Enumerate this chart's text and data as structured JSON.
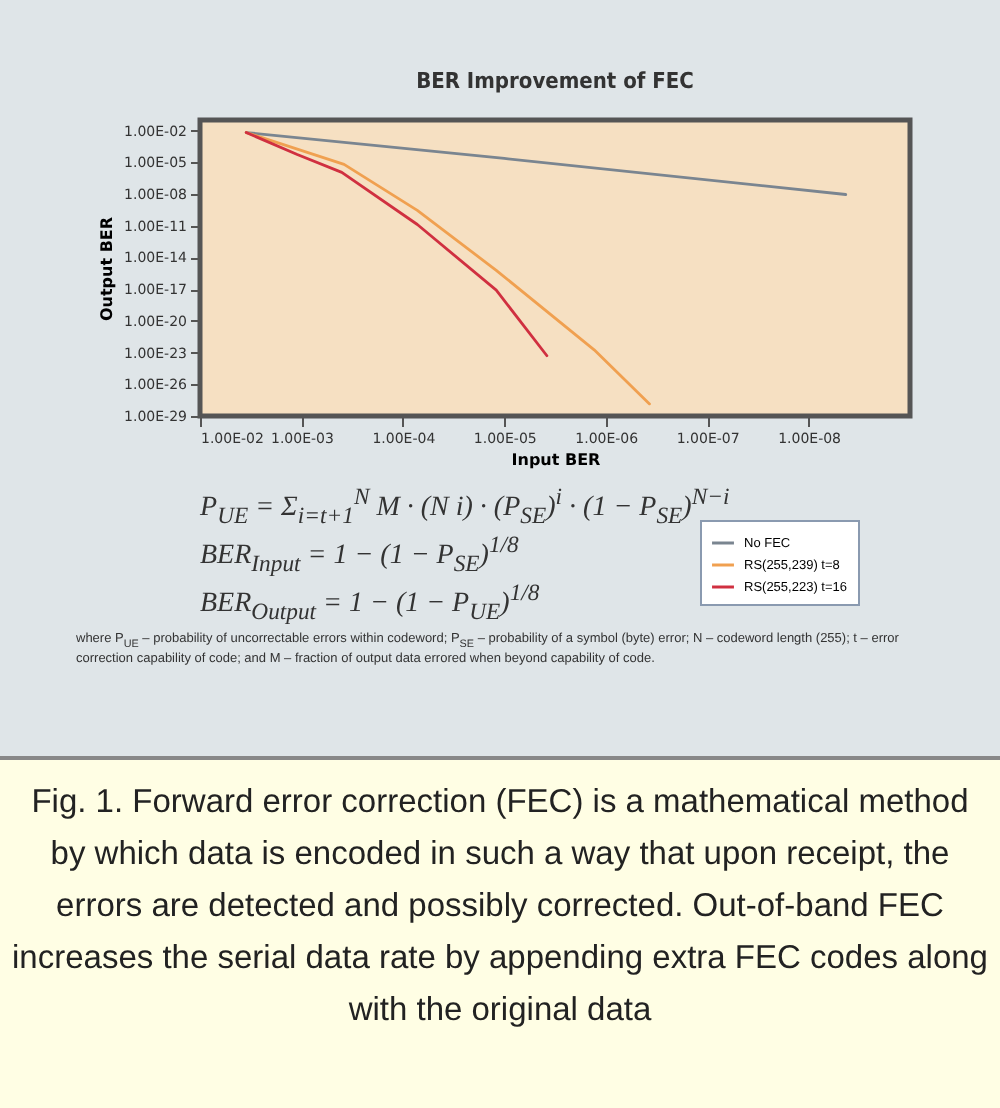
{
  "chart_data": {
    "type": "line",
    "title": "BER Improvement of FEC",
    "xlabel": "Input BER",
    "ylabel": "Output BER",
    "log": "xy",
    "grid": false,
    "legend": "bottom right",
    "marker": "none",
    "line_style": "solid",
    "xlim": [
      0.01,
      1e-09
    ],
    "ylim": [
      1e-29,
      0.1
    ],
    "xticks": [
      {
        "value": 0.01,
        "label": "1.00E-02"
      },
      {
        "value": 0.001,
        "label": "1.00E-03"
      },
      {
        "value": 0.0001,
        "label": "1.00E-04"
      },
      {
        "value": 1e-05,
        "label": "1.00E-05"
      },
      {
        "value": 1e-06,
        "label": "1.00E-06"
      },
      {
        "value": 1e-07,
        "label": "1.00E-07"
      },
      {
        "value": 1e-08,
        "label": "1.00E-08"
      }
    ],
    "yticks": [
      {
        "value": 0.01,
        "label": "1.00E-02"
      },
      {
        "value": 1e-05,
        "label": "1.00E-05"
      },
      {
        "value": 1e-08,
        "label": "1.00E-08"
      },
      {
        "value": 1e-11,
        "label": "1.00E-11"
      },
      {
        "value": 1e-14,
        "label": "1.00E-14"
      },
      {
        "value": 1e-17,
        "label": "1.00E-17"
      },
      {
        "value": 1e-20,
        "label": "1.00E-20"
      },
      {
        "value": 1e-23,
        "label": "1.00E-23"
      },
      {
        "value": 1e-26,
        "label": "1.00E-26"
      },
      {
        "value": 1e-29,
        "label": "1.00E-29"
      }
    ],
    "series": [
      {
        "name": "No FEC",
        "color": "#7a8590",
        "x": [
          0.0035,
          1e-05,
          4.3e-09
        ],
        "values": [
          0.0065,
          2.3e-05,
          9e-09
        ]
      },
      {
        "name": "RS(255,239) t=8",
        "color": "#f0a050",
        "x": [
          0.0035,
          0.00038,
          7.2e-05,
          1.2e-05,
          1.3e-06,
          3.7e-07
        ],
        "values": [
          0.0065,
          6.3e-06,
          2.8e-10,
          6e-16,
          1.8e-23,
          1.4e-28
        ]
      },
      {
        "name": "RS(255,223) t=16",
        "color": "#d03040",
        "x": [
          0.0035,
          0.0011,
          0.0004,
          7.2e-05,
          1.2e-05,
          3.8e-06
        ],
        "values": [
          0.0065,
          5.5e-05,
          1.1e-06,
          1.3e-11,
          8e-18,
          5e-24
        ]
      }
    ],
    "annotations": [
      "P$_{UE}$ = Σ$_{i=t+1}$$^{N}$ M · (N i) · (P$_{SE}$)$^{i}$ · (1 − P$_{SE}$)$^{N−i}$",
      "BER$_{Input}$ = 1 − (1 − P$_{SE}$)$^{1/8}$",
      "BER$_{Output}$ = 1 − (1 − P$_{UE}$)$^{1/8}$",
      "where P$_{UE}$ – probability of uncorrectable errors within codeword; P$_{SE}$ – probability of a symbol (byte) error; N – codeword length (255); t – error correction capability of code; and M – fraction of output data errored when beyond capability of code.",
      "Fig. 1.  Forward error correction (FEC) is a mathematical method by which data is encoded in such a way that upon receipt, the errors are detected and possibly corrected. Out-of-band FEC increases the serial data rate by appending extra FEC codes along with the original data"
    ]
  }
}
